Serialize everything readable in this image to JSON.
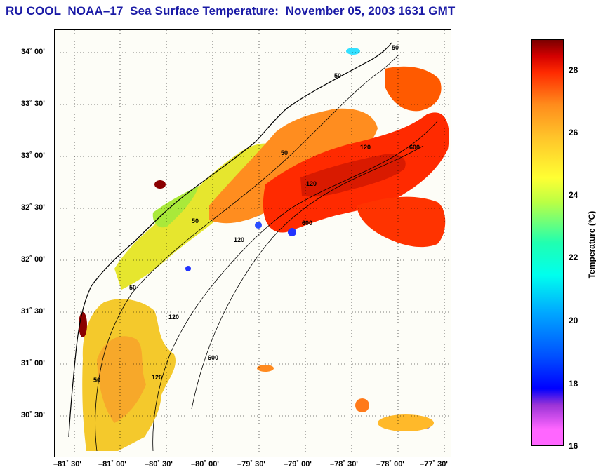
{
  "title": "RU COOL  NOAA–17  Sea Surface Temperature:  November 05, 2003 1631 GMT",
  "map": {
    "latitude_ticks": [
      "34˚ 00'",
      "33˚ 30'",
      "33˚ 00'",
      "32˚ 30'",
      "32˚ 00'",
      "31˚ 30'",
      "31˚ 00'",
      "30˚ 30'"
    ],
    "longitude_ticks": [
      "–81˚ 30'",
      "–81˚ 00'",
      "–80˚ 30'",
      "–80˚ 00'",
      "–79˚ 30'",
      "–79˚ 00'",
      "–78˚ 30'",
      "–78˚ 00'",
      "–77˚ 30'"
    ],
    "contour_labels": [
      "50",
      "50",
      "50",
      "50",
      "50",
      "50",
      "120",
      "120",
      "120",
      "120",
      "120",
      "600",
      "600",
      "600"
    ],
    "grid": "dotted"
  },
  "colorbar": {
    "label": "Temperature (°C)",
    "ticks": [
      "28",
      "26",
      "24",
      "22",
      "20",
      "18",
      "16"
    ],
    "min": 16,
    "max": 29,
    "colors": {
      "low": "#ff66ff",
      "blue": "#0000ff",
      "cyan": "#00ffee",
      "yellow": "#ffff33",
      "orange": "#ff8c1c",
      "red": "#ff2a00",
      "high": "#7a0000"
    }
  }
}
